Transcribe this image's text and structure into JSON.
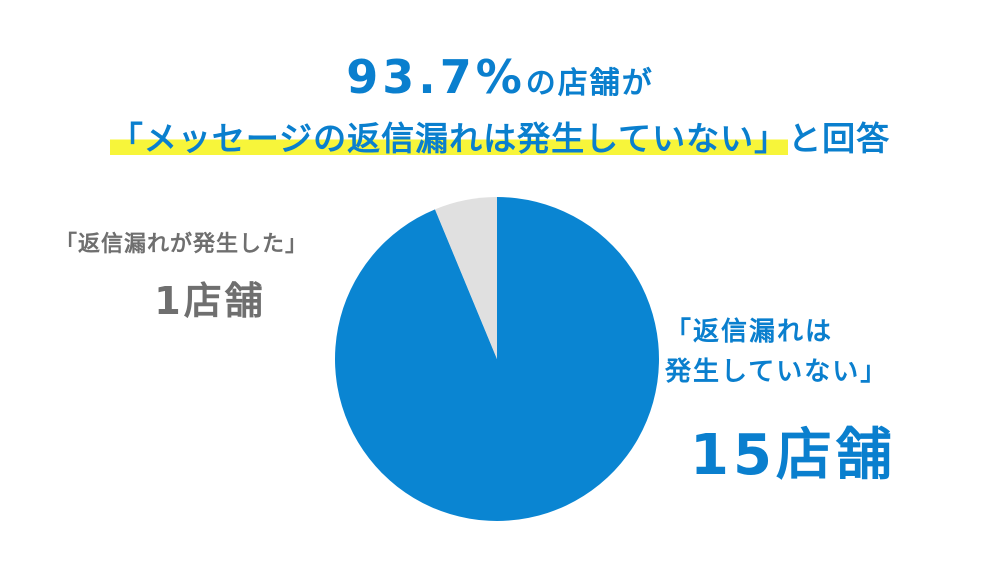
{
  "chart_data": {
    "type": "pie",
    "title": [
      "93.7%",
      "の店舗が"
    ],
    "subtitle": [
      "「メッセージの返信漏れは発生していない」",
      "と回答"
    ],
    "categories": [
      "「返信漏れは\n発生していない」",
      "「返信漏れが発生した」"
    ],
    "values": [
      15,
      1
    ],
    "value_labels": [
      "15店舗",
      "1店舗"
    ],
    "colors": [
      "#0a85d2",
      "#e0e0e0"
    ]
  }
}
